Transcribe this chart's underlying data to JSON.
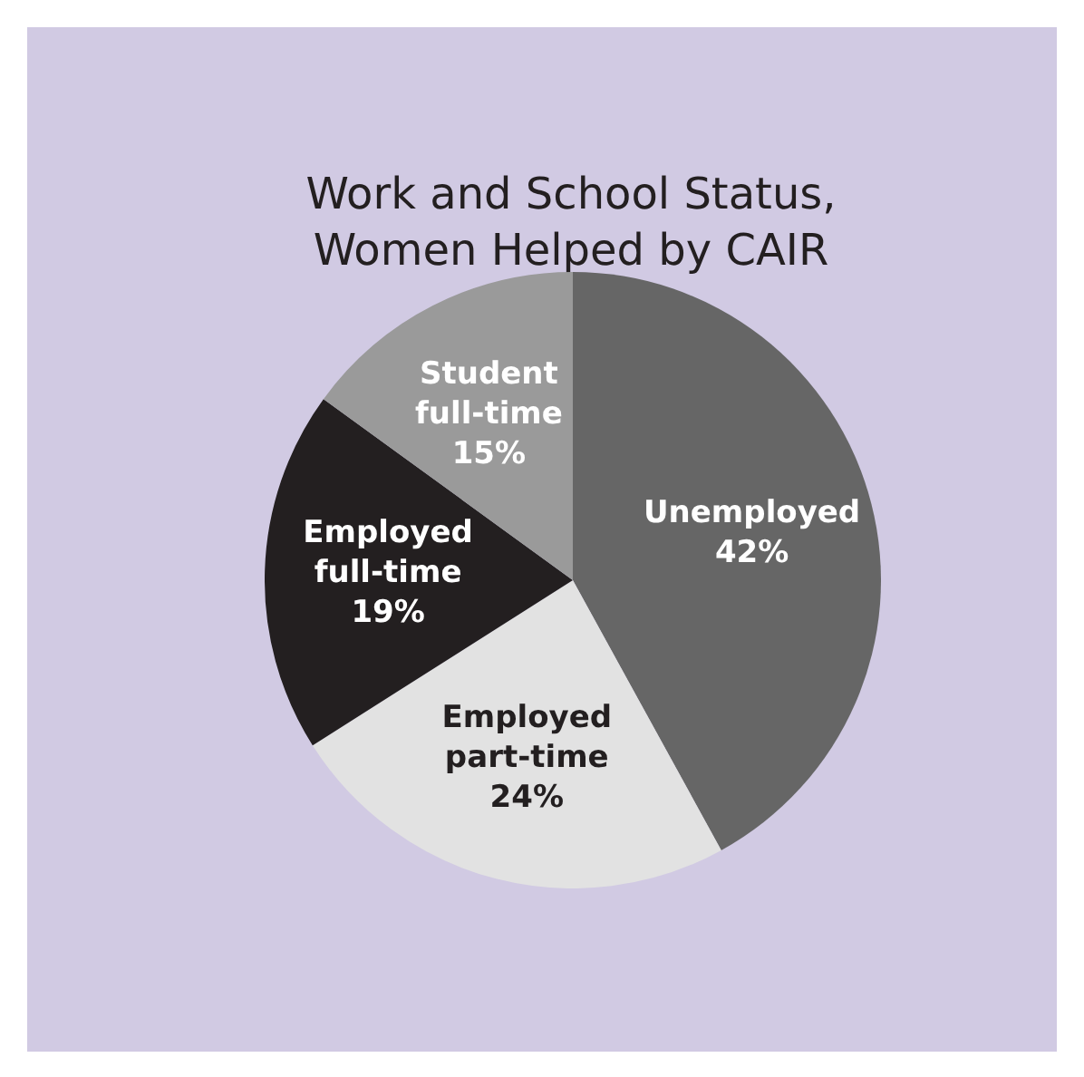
{
  "chart_data": {
    "type": "pie",
    "title": "Work and School Status, Women Helped by CAIR",
    "categories": [
      "Unemployed",
      "Employed part-time",
      "Employed full-time",
      "Student full-time"
    ],
    "values": [
      42,
      24,
      19,
      15
    ],
    "value_labels": [
      "42%",
      "24%",
      "19%",
      "15%"
    ],
    "colors": [
      "#666666",
      "#e2e2e2",
      "#231f20",
      "#9a9a9a"
    ],
    "legend": false
  }
}
